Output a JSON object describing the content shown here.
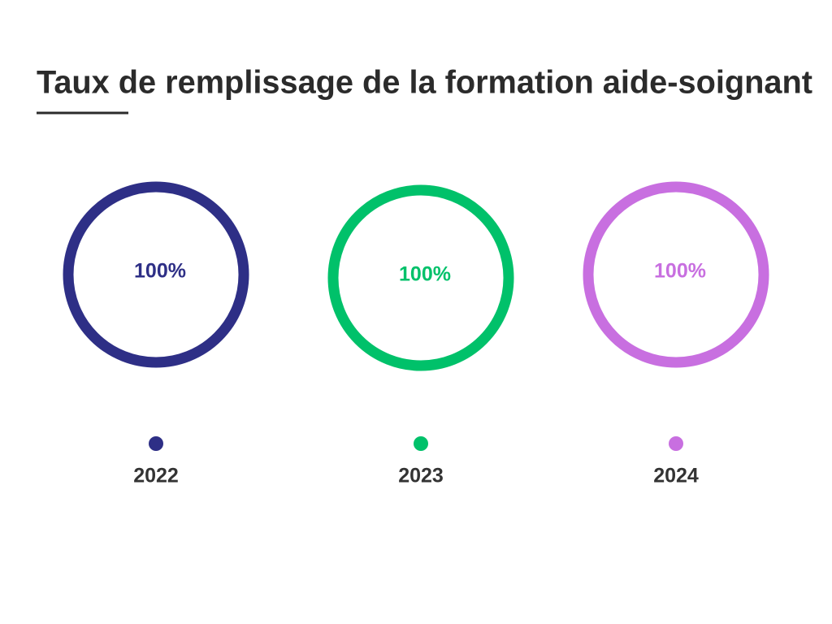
{
  "chart_data": {
    "type": "donut",
    "title": "Taux de remplissage de la formation aide-soignant",
    "categories": [
      "2022",
      "2023",
      "2024"
    ],
    "values": [
      100,
      100,
      100
    ],
    "value_labels": [
      "100%",
      "100%",
      "100%"
    ],
    "max": 100,
    "colors": [
      "#2e2f86",
      "#00c16a",
      "#c86fe0"
    ]
  }
}
